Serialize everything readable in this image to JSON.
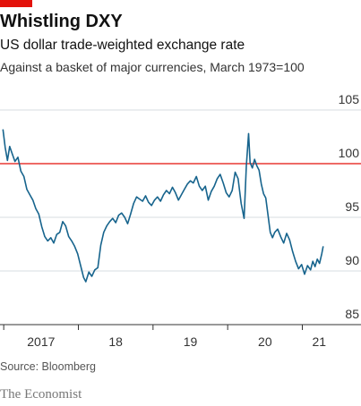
{
  "chart_data": {
    "type": "line",
    "title": "Whistling DXY",
    "subtitle": "US dollar trade-weighted exchange rate",
    "description": "Against a basket of major currencies, March 1973=100",
    "source": "Source: Bloomberg",
    "publisher": "The Economist",
    "xlim": [
      2016.95,
      2021.45
    ],
    "xticks": [
      {
        "value": 2017,
        "label": "2017"
      },
      {
        "value": 2018,
        "label": "18"
      },
      {
        "value": 2019,
        "label": "19"
      },
      {
        "value": 2020,
        "label": "20"
      },
      {
        "value": 2021,
        "label": "21"
      }
    ],
    "ylim": [
      85,
      105
    ],
    "yticks": [
      85,
      90,
      95,
      100,
      105
    ],
    "grid": true,
    "reference_line": 100,
    "reference_color": "#e3120b",
    "x": [
      2016.99,
      2017.02,
      2017.05,
      2017.08,
      2017.11,
      2017.15,
      2017.19,
      2017.23,
      2017.27,
      2017.31,
      2017.35,
      2017.39,
      2017.43,
      2017.47,
      2017.51,
      2017.55,
      2017.59,
      2017.63,
      2017.67,
      2017.71,
      2017.75,
      2017.79,
      2017.83,
      2017.87,
      2017.91,
      2017.95,
      2017.99,
      2018.03,
      2018.07,
      2018.1,
      2018.14,
      2018.18,
      2018.22,
      2018.26,
      2018.3,
      2018.34,
      2018.38,
      2018.42,
      2018.46,
      2018.5,
      2018.54,
      2018.58,
      2018.62,
      2018.66,
      2018.7,
      2018.74,
      2018.78,
      2018.82,
      2018.86,
      2018.9,
      2018.94,
      2018.98,
      2019.02,
      2019.06,
      2019.1,
      2019.14,
      2019.18,
      2019.22,
      2019.26,
      2019.3,
      2019.34,
      2019.38,
      2019.42,
      2019.46,
      2019.5,
      2019.54,
      2019.58,
      2019.62,
      2019.66,
      2019.7,
      2019.74,
      2019.78,
      2019.82,
      2019.86,
      2019.9,
      2019.94,
      2019.98,
      2020.02,
      2020.06,
      2020.1,
      2020.14,
      2020.18,
      2020.22,
      2020.25,
      2020.28,
      2020.3,
      2020.33,
      2020.36,
      2020.39,
      2020.42,
      2020.45,
      2020.48,
      2020.51,
      2020.54,
      2020.57,
      2020.6,
      2020.63,
      2020.67,
      2020.71,
      2020.75,
      2020.79,
      2020.83,
      2020.87,
      2020.91,
      2020.95,
      2020.99,
      2021.03,
      2021.07,
      2021.11,
      2021.14,
      2021.17,
      2021.2,
      2021.23,
      2021.26,
      2021.28
    ],
    "values": [
      103.2,
      101.5,
      100.3,
      101.6,
      101,
      100.2,
      100.6,
      99.3,
      98.8,
      97.6,
      97.1,
      96.6,
      95.8,
      95.3,
      94.1,
      93.2,
      92.8,
      93.1,
      92.6,
      93.4,
      93.6,
      94.6,
      94.2,
      93.2,
      92.8,
      92.3,
      91.6,
      90.5,
      89.4,
      89,
      89.9,
      89.5,
      90.1,
      90.3,
      92.4,
      93.6,
      94.2,
      94.6,
      94.9,
      94.5,
      95.2,
      95.4,
      95,
      94.4,
      95.3,
      96.3,
      96.9,
      96.7,
      96.5,
      97,
      96.4,
      96.1,
      96.6,
      96.9,
      96.5,
      97.1,
      97.5,
      97.2,
      97.8,
      97.3,
      96.6,
      97.1,
      97.6,
      98.1,
      98.4,
      98.2,
      98.8,
      97.9,
      97.5,
      97.9,
      96.6,
      97.4,
      97.9,
      98.6,
      99,
      98.2,
      97.3,
      96.9,
      97.5,
      99.2,
      98.6,
      96.3,
      94.9,
      99.8,
      102.8,
      100.1,
      99.6,
      100.4,
      99.8,
      99.4,
      98.1,
      97.2,
      96.8,
      95.2,
      93.6,
      93.1,
      93.6,
      93.9,
      93.2,
      92.6,
      93.5,
      92.9,
      91.8,
      90.9,
      90.2,
      90.6,
      89.7,
      90.5,
      90.1,
      90.9,
      90.4,
      91.1,
      90.7,
      91.6,
      92.3
    ],
    "color": "#17648d"
  }
}
